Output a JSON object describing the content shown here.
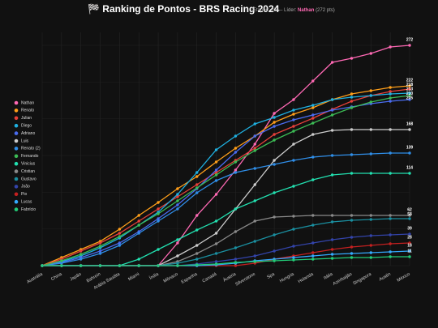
{
  "chart_data": {
    "type": "line",
    "title": "🏁 Ranking de Pontos - BRS Racing 2024",
    "subtitle": {
      "prefix": "Etapas: 20 — Líder:",
      "leader": "Nathan",
      "suffix": "(272 pts)"
    },
    "grid": true,
    "categories": [
      "Austrália",
      "China",
      "Japão",
      "Bahrein",
      "Arábia Saudita",
      "Miami",
      "Índia",
      "Mônaco",
      "Espanha",
      "Canadá",
      "Áustria",
      "Silverstone",
      "Spa",
      "Hungria",
      "Holanda",
      "Itália",
      "Azerbaijão",
      "Singapura",
      "Austin",
      "México"
    ],
    "series": [
      {
        "name": "Nathan",
        "color": "#ff69b4",
        "values": [
          0,
          0,
          0,
          0,
          0,
          0,
          0,
          28,
          62,
          88,
          118,
          150,
          188,
          205,
          228,
          251,
          256,
          262,
          270,
          272
        ]
      },
      {
        "name": "Renato",
        "color": "#ff9f1a",
        "values": [
          0,
          10,
          20,
          30,
          45,
          62,
          78,
          95,
          110,
          128,
          145,
          160,
          177,
          187,
          195,
          205,
          212,
          216,
          220,
          222
        ]
      },
      {
        "name": "Julian",
        "color": "#e8403a",
        "values": [
          0,
          8,
          18,
          28,
          40,
          55,
          70,
          85,
          100,
          115,
          130,
          145,
          162,
          172,
          182,
          193,
          203,
          210,
          215,
          218
        ]
      },
      {
        "name": "Diego",
        "color": "#1fb0e0",
        "values": [
          0,
          5,
          12,
          22,
          34,
          50,
          66,
          88,
          115,
          143,
          160,
          175,
          183,
          192,
          198,
          205,
          208,
          210,
          212,
          213
        ]
      },
      {
        "name": "Adriano",
        "color": "#4a6cf0",
        "values": [
          0,
          4,
          10,
          18,
          28,
          42,
          58,
          75,
          95,
          118,
          140,
          160,
          172,
          180,
          186,
          192,
          196,
          200,
          203,
          205
        ]
      },
      {
        "name": "Luis",
        "color": "#cccccc",
        "values": [
          0,
          0,
          0,
          0,
          0,
          0,
          0,
          12,
          25,
          40,
          70,
          100,
          130,
          150,
          162,
          167,
          168,
          168,
          168,
          168
        ]
      },
      {
        "name": "Renato (2)",
        "color": "#2f8ee8",
        "values": [
          0,
          3,
          8,
          15,
          25,
          40,
          55,
          70,
          90,
          105,
          115,
          120,
          125,
          130,
          134,
          136,
          137,
          138,
          139,
          139
        ]
      },
      {
        "name": "Fernando",
        "color": "#3cbb55",
        "values": [
          0,
          6,
          14,
          24,
          36,
          50,
          64,
          80,
          96,
          112,
          128,
          142,
          155,
          166,
          176,
          186,
          195,
          202,
          207,
          210
        ]
      },
      {
        "name": "Vinicius",
        "color": "#22e0b0",
        "values": [
          0,
          0,
          0,
          0,
          0,
          8,
          20,
          32,
          44,
          55,
          70,
          80,
          90,
          98,
          106,
          112,
          114,
          114,
          114,
          114
        ]
      },
      {
        "name": "Cristian",
        "color": "#8a8a8a",
        "values": [
          0,
          0,
          0,
          0,
          0,
          0,
          0,
          5,
          15,
          27,
          42,
          55,
          60,
          61,
          62,
          62,
          62,
          62,
          62,
          62
        ]
      },
      {
        "name": "Gustavo",
        "color": "#1a8fa0",
        "values": [
          0,
          0,
          0,
          0,
          0,
          0,
          0,
          3,
          8,
          15,
          22,
          30,
          38,
          45,
          50,
          54,
          56,
          57,
          58,
          58
        ]
      },
      {
        "name": "João",
        "color": "#3344aa",
        "values": [
          0,
          0,
          0,
          0,
          0,
          0,
          0,
          0,
          2,
          5,
          8,
          12,
          18,
          24,
          28,
          32,
          35,
          37,
          38,
          39
        ]
      },
      {
        "name": "Pio",
        "color": "#c42020",
        "values": [
          0,
          0,
          0,
          0,
          0,
          0,
          0,
          0,
          0,
          0,
          0,
          3,
          8,
          12,
          16,
          20,
          23,
          25,
          27,
          28
        ]
      },
      {
        "name": "Lucas",
        "color": "#33aaff",
        "values": [
          0,
          0,
          0,
          0,
          0,
          0,
          0,
          0,
          0,
          1,
          3,
          6,
          8,
          10,
          12,
          14,
          15,
          16,
          17,
          18
        ]
      },
      {
        "name": "Fabrício",
        "color": "#22cc77",
        "values": [
          0,
          0,
          0,
          0,
          0,
          0,
          0,
          0,
          1,
          2,
          4,
          5,
          6,
          7,
          8,
          9,
          10,
          10,
          11,
          11
        ]
      }
    ]
  }
}
